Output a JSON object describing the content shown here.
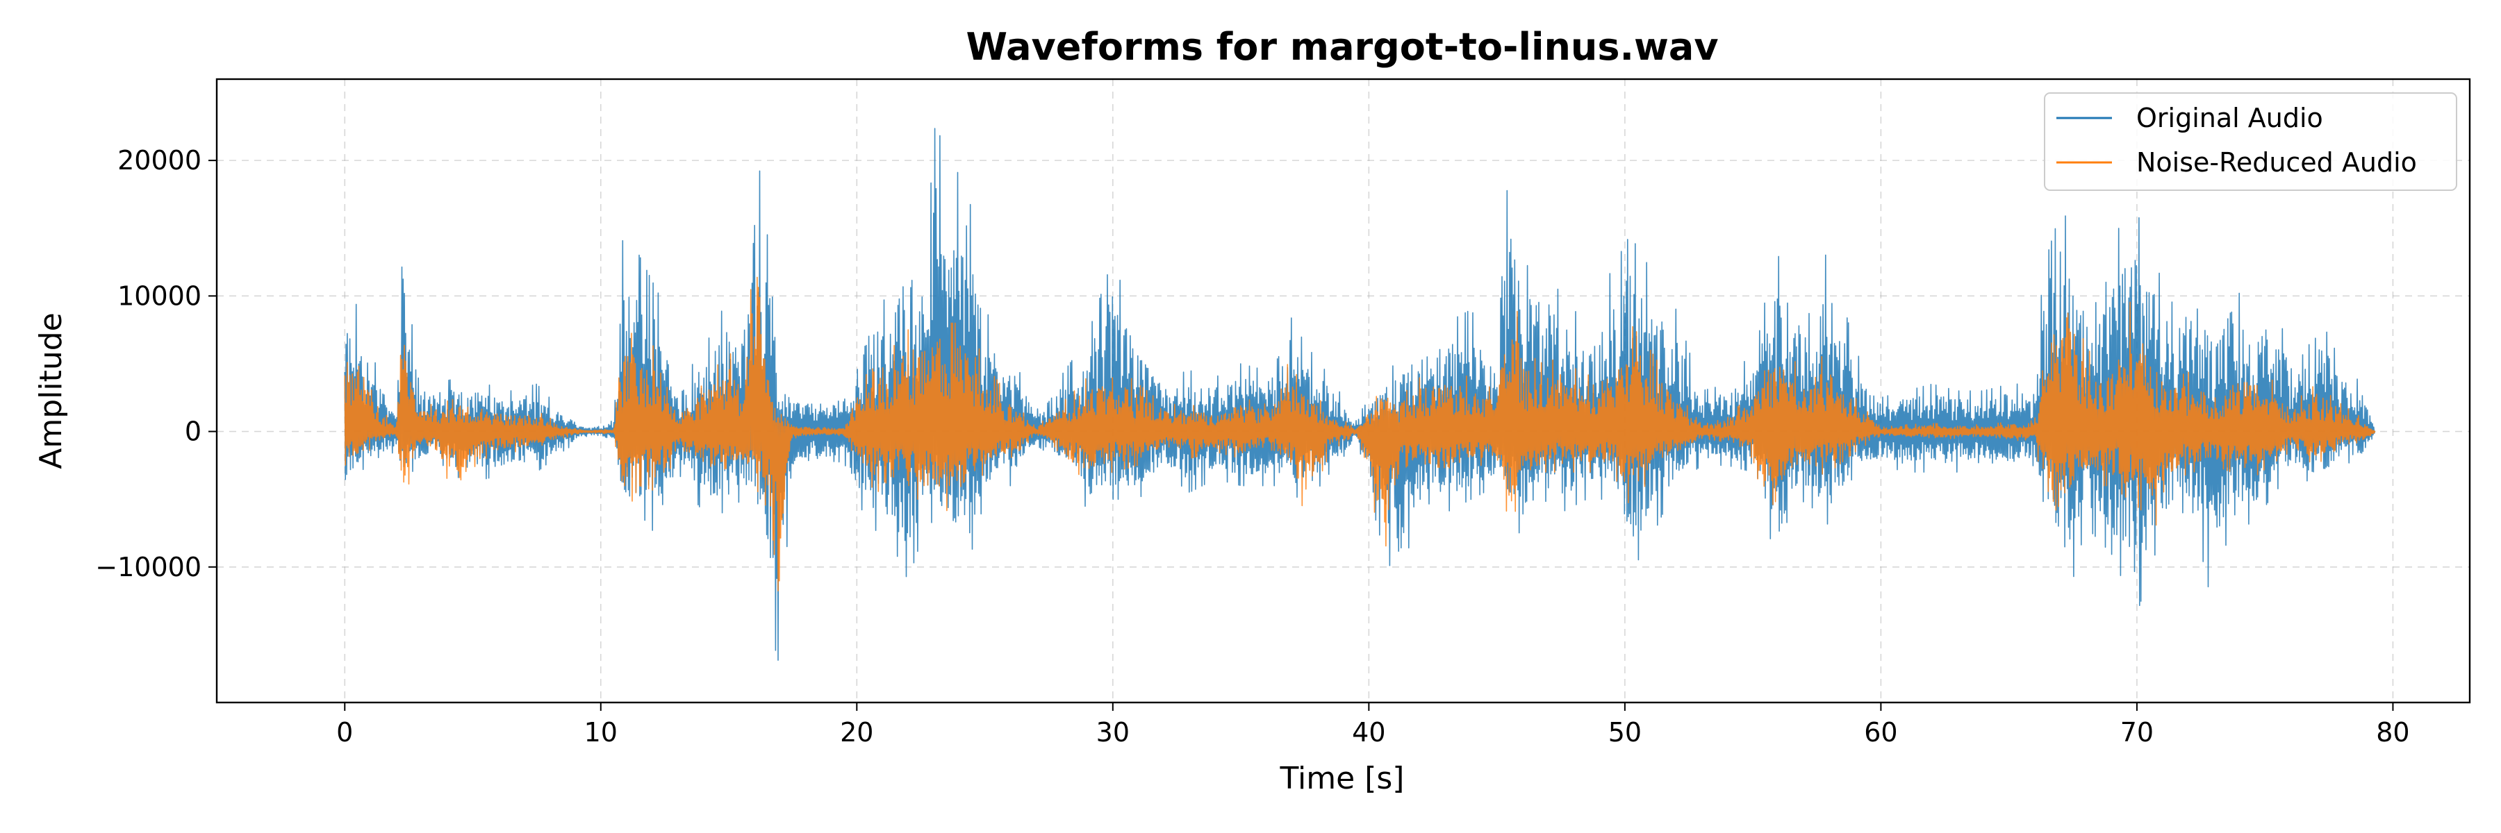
{
  "chart_data": {
    "type": "line",
    "title": "Waveforms for margot-to-linus.wav",
    "xlabel": "Time [s]",
    "ylabel": "Amplitude",
    "xlim": [
      -5,
      83
    ],
    "ylim": [
      -20000,
      26000
    ],
    "xticks": [
      0,
      10,
      20,
      30,
      40,
      50,
      60,
      70,
      80
    ],
    "xtick_labels": [
      "0",
      "10",
      "20",
      "30",
      "40",
      "50",
      "60",
      "70",
      "80"
    ],
    "yticks": [
      -10000,
      0,
      10000,
      20000
    ],
    "ytick_labels": [
      "−10000",
      "0",
      "10000",
      "20000"
    ],
    "grid": true,
    "legend": "top-right",
    "duration_s": 79.3,
    "series": [
      {
        "name": "Original Audio",
        "color": "#1f77b4",
        "envelope": [
          [
            0.0,
            10500,
            -4500
          ],
          [
            0.6,
            9000,
            -3000
          ],
          [
            1.2,
            5000,
            -2000
          ],
          [
            2.0,
            2000,
            -1500
          ],
          [
            2.3,
            15200,
            -4000
          ],
          [
            2.8,
            4000,
            -2500
          ],
          [
            3.5,
            3500,
            -2000
          ],
          [
            4.5,
            4000,
            -3500
          ],
          [
            5.5,
            3500,
            -3500
          ],
          [
            6.5,
            3000,
            -3000
          ],
          [
            7.5,
            3500,
            -3000
          ],
          [
            8.5,
            1500,
            -1500
          ],
          [
            9.5,
            300,
            -300
          ],
          [
            10.5,
            800,
            -800
          ],
          [
            10.9,
            15800,
            -6500
          ],
          [
            11.5,
            13000,
            -6000
          ],
          [
            12.3,
            10000,
            -8000
          ],
          [
            13.0,
            3500,
            -3000
          ],
          [
            14.0,
            6000,
            -6000
          ],
          [
            15.0,
            10000,
            -6000
          ],
          [
            15.5,
            8000,
            -5000
          ],
          [
            16.0,
            22500,
            -5500
          ],
          [
            16.6,
            13000,
            -12000
          ],
          [
            16.9,
            4000,
            -17500
          ],
          [
            17.5,
            3000,
            -3000
          ],
          [
            18.5,
            2500,
            -2500
          ],
          [
            19.5,
            3000,
            -3000
          ],
          [
            20.5,
            9000,
            -7000
          ],
          [
            21.3,
            10000,
            -8000
          ],
          [
            22.0,
            15000,
            -11000
          ],
          [
            22.7,
            13000,
            -7000
          ],
          [
            23.1,
            23800,
            -6500
          ],
          [
            23.6,
            17000,
            -9000
          ],
          [
            24.4,
            22000,
            -9500
          ],
          [
            25.0,
            9000,
            -5000
          ],
          [
            26.0,
            6000,
            -4000
          ],
          [
            27.0,
            1500,
            -1000
          ],
          [
            28.5,
            5500,
            -3000
          ],
          [
            29.0,
            7000,
            -6000
          ],
          [
            30.0,
            12800,
            -5000
          ],
          [
            31.0,
            7000,
            -5000
          ],
          [
            32.0,
            4000,
            -3000
          ],
          [
            33.0,
            4500,
            -4500
          ],
          [
            34.0,
            4000,
            -3500
          ],
          [
            35.0,
            5000,
            -4000
          ],
          [
            36.0,
            4500,
            -4000
          ],
          [
            36.8,
            9000,
            -4000
          ],
          [
            37.5,
            6500,
            -5500
          ],
          [
            38.5,
            4000,
            -3000
          ],
          [
            39.5,
            1000,
            -800
          ],
          [
            40.6,
            4000,
            -9000
          ],
          [
            41.2,
            5500,
            -11500
          ],
          [
            42.0,
            7000,
            -5000
          ],
          [
            43.0,
            8000,
            -6000
          ],
          [
            44.0,
            9000,
            -5000
          ],
          [
            45.0,
            5000,
            -4000
          ],
          [
            45.5,
            21000,
            -6000
          ],
          [
            46.0,
            12000,
            -8000
          ],
          [
            46.8,
            13000,
            -5000
          ],
          [
            47.5,
            10000,
            -6000
          ],
          [
            48.5,
            8000,
            -5000
          ],
          [
            49.5,
            12000,
            -5000
          ],
          [
            50.2,
            14500,
            -10500
          ],
          [
            51.0,
            12000,
            -8000
          ],
          [
            52.0,
            9000,
            -4000
          ],
          [
            53.0,
            3000,
            -2500
          ],
          [
            54.0,
            3500,
            -2500
          ],
          [
            55.0,
            6000,
            -3000
          ],
          [
            55.5,
            14000,
            -7000
          ],
          [
            56.2,
            12500,
            -10500
          ],
          [
            57.0,
            10500,
            -5000
          ],
          [
            58.0,
            13500,
            -7000
          ],
          [
            59.0,
            6000,
            -3000
          ],
          [
            60.0,
            2500,
            -2500
          ],
          [
            61.0,
            3000,
            -3000
          ],
          [
            62.0,
            3500,
            -3000
          ],
          [
            63.0,
            3000,
            -3000
          ],
          [
            64.0,
            3000,
            -3000
          ],
          [
            65.0,
            3500,
            -3000
          ],
          [
            66.0,
            3500,
            -2500
          ],
          [
            66.7,
            20800,
            -8000
          ],
          [
            67.3,
            15000,
            -12500
          ],
          [
            68.0,
            11000,
            -7000
          ],
          [
            69.0,
            14500,
            -9000
          ],
          [
            70.0,
            16200,
            -13500
          ],
          [
            70.8,
            12000,
            -8500
          ],
          [
            71.5,
            9000,
            -6000
          ],
          [
            72.2,
            12500,
            -6000
          ],
          [
            73.0,
            8500,
            -13500
          ],
          [
            73.7,
            11500,
            -6000
          ],
          [
            74.5,
            8000,
            -7000
          ],
          [
            75.2,
            10000,
            -5000
          ],
          [
            76.0,
            6000,
            -3000
          ],
          [
            77.0,
            9000,
            -4000
          ],
          [
            78.0,
            5000,
            -2500
          ],
          [
            78.8,
            3500,
            -2000
          ],
          [
            79.3,
            100,
            -100
          ]
        ]
      },
      {
        "name": "Noise-Reduced Audio",
        "color": "#ff7f0e",
        "envelope": [
          [
            0.0,
            7500,
            -2500
          ],
          [
            0.6,
            6000,
            -2000
          ],
          [
            1.2,
            2000,
            -1000
          ],
          [
            2.0,
            500,
            -300
          ],
          [
            2.3,
            9000,
            -5500
          ],
          [
            2.8,
            2000,
            -1500
          ],
          [
            3.5,
            2000,
            -1500
          ],
          [
            4.5,
            2500,
            -5500
          ],
          [
            5.5,
            2000,
            -2000
          ],
          [
            6.5,
            1500,
            -1500
          ],
          [
            7.5,
            1500,
            -1500
          ],
          [
            8.5,
            500,
            -500
          ],
          [
            9.5,
            100,
            -100
          ],
          [
            10.5,
            200,
            -200
          ],
          [
            10.9,
            7500,
            -6500
          ],
          [
            11.5,
            7000,
            -4000
          ],
          [
            12.3,
            6000,
            -4500
          ],
          [
            13.0,
            1500,
            -1500
          ],
          [
            14.0,
            3500,
            -3000
          ],
          [
            15.0,
            6000,
            -4000
          ],
          [
            15.5,
            4000,
            -3000
          ],
          [
            16.0,
            13000,
            -4000
          ],
          [
            16.6,
            4000,
            -6000
          ],
          [
            16.9,
            2000,
            -15800
          ],
          [
            17.5,
            500,
            -500
          ],
          [
            18.5,
            300,
            -300
          ],
          [
            19.5,
            300,
            -300
          ],
          [
            20.5,
            6000,
            -4000
          ],
          [
            21.3,
            6000,
            -5000
          ],
          [
            22.0,
            7500,
            -5000
          ],
          [
            22.7,
            8000,
            -5000
          ],
          [
            23.1,
            9000,
            -5000
          ],
          [
            23.6,
            8000,
            -6000
          ],
          [
            24.4,
            8000,
            -4500
          ],
          [
            25.0,
            5000,
            -3000
          ],
          [
            26.0,
            2500,
            -2000
          ],
          [
            27.0,
            300,
            -300
          ],
          [
            28.5,
            3000,
            -3000
          ],
          [
            29.0,
            4000,
            -3500
          ],
          [
            30.0,
            5000,
            -3000
          ],
          [
            31.0,
            3500,
            -2500
          ],
          [
            32.0,
            2000,
            -1500
          ],
          [
            33.0,
            2000,
            -2000
          ],
          [
            34.0,
            1500,
            -1500
          ],
          [
            35.0,
            2500,
            -2000
          ],
          [
            36.0,
            2000,
            -1500
          ],
          [
            36.8,
            5000,
            -2500
          ],
          [
            37.5,
            3500,
            -6000
          ],
          [
            38.5,
            1500,
            -1500
          ],
          [
            39.5,
            200,
            -200
          ],
          [
            40.6,
            3500,
            -9000
          ],
          [
            41.2,
            2500,
            -4000
          ],
          [
            42.0,
            4000,
            -3000
          ],
          [
            43.0,
            4500,
            -3500
          ],
          [
            44.0,
            4000,
            -2500
          ],
          [
            45.0,
            3000,
            -2500
          ],
          [
            45.5,
            13000,
            -7000
          ],
          [
            46.0,
            6000,
            -4500
          ],
          [
            46.8,
            5000,
            -3000
          ],
          [
            47.5,
            5500,
            -3000
          ],
          [
            48.5,
            4000,
            -3000
          ],
          [
            49.5,
            6500,
            -3000
          ],
          [
            50.2,
            8000,
            -5500
          ],
          [
            51.0,
            6000,
            -3500
          ],
          [
            52.0,
            3000,
            -2000
          ],
          [
            53.0,
            500,
            -500
          ],
          [
            54.0,
            1000,
            -800
          ],
          [
            55.0,
            3000,
            -2000
          ],
          [
            55.5,
            6500,
            -6000
          ],
          [
            56.2,
            6000,
            -4500
          ],
          [
            57.0,
            4500,
            -3500
          ],
          [
            58.0,
            6000,
            -3000
          ],
          [
            59.0,
            2500,
            -1500
          ],
          [
            60.0,
            300,
            -300
          ],
          [
            61.0,
            500,
            -500
          ],
          [
            62.0,
            600,
            -600
          ],
          [
            63.0,
            500,
            -500
          ],
          [
            64.0,
            500,
            -500
          ],
          [
            65.0,
            700,
            -700
          ],
          [
            66.0,
            800,
            -600
          ],
          [
            66.7,
            9000,
            -8500
          ],
          [
            67.3,
            12000,
            -6000
          ],
          [
            68.0,
            6000,
            -4000
          ],
          [
            69.0,
            5500,
            -4000
          ],
          [
            70.0,
            11000,
            -5500
          ],
          [
            70.8,
            5500,
            -7000
          ],
          [
            71.5,
            4000,
            -3500
          ],
          [
            72.2,
            4500,
            -3000
          ],
          [
            73.0,
            3000,
            -2500
          ],
          [
            73.7,
            5000,
            -3000
          ],
          [
            74.5,
            4500,
            -3500
          ],
          [
            75.2,
            4000,
            -2500
          ],
          [
            76.0,
            2000,
            -1500
          ],
          [
            77.0,
            3500,
            -2500
          ],
          [
            78.0,
            2000,
            -1000
          ],
          [
            78.8,
            1000,
            -800
          ],
          [
            79.3,
            50,
            -50
          ]
        ]
      }
    ]
  }
}
